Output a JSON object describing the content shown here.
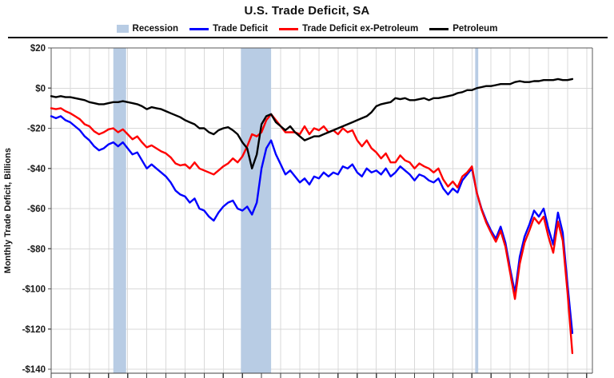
{
  "page": {
    "title": "U.S. Trade Deficit, SA"
  },
  "y_axis_label": "Monthly Trade Deficit, Billions",
  "legend": {
    "items": [
      {
        "label": "Recession",
        "color": "#b8cce4",
        "marker": "band"
      },
      {
        "label": "Trade Deficit",
        "color": "#0000ff",
        "marker": "line"
      },
      {
        "label": "Trade Deficit ex-Petroleum",
        "color": "#ff0000",
        "marker": "line"
      },
      {
        "label": "Petroleum",
        "color": "#000000",
        "marker": "line"
      }
    ]
  },
  "chart_data": {
    "type": "line",
    "title": "U.S. Trade Deficit, SA",
    "xlabel": "",
    "ylabel": "Monthly Trade Deficit, Billions",
    "xlim": [
      1998,
      2026.3
    ],
    "ylim": [
      -140,
      20
    ],
    "grid": true,
    "legend_position": "top",
    "units": "billions of dollars, monthly, seasonally adjusted",
    "y_ticks": [
      {
        "value": 20,
        "label": "$20"
      },
      {
        "value": 0,
        "label": "$0"
      },
      {
        "value": -20,
        "label": "-$20"
      },
      {
        "value": -40,
        "label": "-$40"
      },
      {
        "value": -60,
        "label": "-$60"
      },
      {
        "value": -80,
        "label": "-$80"
      },
      {
        "value": -100,
        "label": "-$100"
      },
      {
        "value": -120,
        "label": "-$120"
      },
      {
        "value": -140,
        "label": "-$140"
      }
    ],
    "recessions": [
      [
        2001.25,
        2001.92
      ],
      [
        2007.92,
        2009.5
      ],
      [
        2020.17,
        2020.33
      ]
    ],
    "colors": {
      "recession": "#b8cce4",
      "grid": "#d9d9d9",
      "frame": "#595959",
      "axis": "#404040"
    },
    "x": [
      1998,
      1998.25,
      1998.5,
      1998.75,
      1999,
      1999.25,
      1999.5,
      1999.75,
      2000,
      2000.25,
      2000.5,
      2000.75,
      2001,
      2001.25,
      2001.5,
      2001.75,
      2002,
      2002.25,
      2002.5,
      2002.75,
      2003,
      2003.25,
      2003.5,
      2003.75,
      2004,
      2004.25,
      2004.5,
      2004.75,
      2005,
      2005.25,
      2005.5,
      2005.75,
      2006,
      2006.25,
      2006.5,
      2006.75,
      2007,
      2007.25,
      2007.5,
      2007.75,
      2008,
      2008.25,
      2008.5,
      2008.75,
      2009,
      2009.25,
      2009.5,
      2009.75,
      2010,
      2010.25,
      2010.5,
      2010.75,
      2011,
      2011.25,
      2011.5,
      2011.75,
      2012,
      2012.25,
      2012.5,
      2012.75,
      2013,
      2013.25,
      2013.5,
      2013.75,
      2014,
      2014.25,
      2014.5,
      2014.75,
      2015,
      2015.25,
      2015.5,
      2015.75,
      2016,
      2016.25,
      2016.5,
      2016.75,
      2017,
      2017.25,
      2017.5,
      2017.75,
      2018,
      2018.25,
      2018.5,
      2018.75,
      2019,
      2019.25,
      2019.5,
      2019.75,
      2020,
      2020.25,
      2020.5,
      2020.75,
      2021,
      2021.25,
      2021.5,
      2021.75,
      2022,
      2022.25,
      2022.5,
      2022.75,
      2023,
      2023.25,
      2023.5,
      2023.75,
      2024,
      2024.25,
      2024.5,
      2024.75,
      2025,
      2025.25
    ],
    "series": [
      {
        "name": "Trade Deficit",
        "color": "#0000ff",
        "values": [
          -14,
          -15,
          -14,
          -16,
          -17,
          -19,
          -21,
          -24,
          -26,
          -29,
          -31,
          -30,
          -28,
          -27,
          -29,
          -27,
          -30,
          -33,
          -32,
          -36,
          -40,
          -38,
          -40,
          -42,
          -44,
          -47,
          -51,
          -53,
          -54,
          -57,
          -55,
          -60,
          -61,
          -64,
          -66,
          -62,
          -59,
          -57,
          -56,
          -60,
          -61,
          -59,
          -63,
          -57,
          -40,
          -30,
          -26,
          -33,
          -38,
          -43,
          -41,
          -44,
          -47,
          -45,
          -48,
          -44,
          -45,
          -42,
          -44,
          -42,
          -43,
          -39,
          -40,
          -38,
          -42,
          -44,
          -40,
          -42,
          -41,
          -43,
          -40,
          -44,
          -42,
          -39,
          -41,
          -43,
          -46,
          -43,
          -44,
          -46,
          -47,
          -45,
          -50,
          -53,
          -50,
          -52,
          -46,
          -43,
          -40,
          -52,
          -60,
          -66,
          -71,
          -75,
          -69,
          -77,
          -90,
          -102,
          -84,
          -74,
          -68,
          -61,
          -64,
          -60,
          -70,
          -78,
          -62,
          -72,
          -98,
          -122
        ]
      },
      {
        "name": "Trade Deficit ex-Petroleum",
        "color": "#ff0000",
        "values": [
          -10,
          -10.5,
          -10,
          -11.5,
          -12.5,
          -14,
          -15.5,
          -18,
          -19,
          -21.5,
          -23,
          -22,
          -20.5,
          -20,
          -22,
          -20.5,
          -23,
          -25.5,
          -24,
          -27,
          -29.5,
          -28.5,
          -30,
          -31.5,
          -32.5,
          -34.5,
          -37.5,
          -38.5,
          -38,
          -40,
          -37,
          -40,
          -41,
          -42,
          -43,
          -41,
          -39,
          -37.5,
          -35,
          -37,
          -34,
          -29,
          -23,
          -24,
          -22,
          -16,
          -13,
          -16,
          -19,
          -22,
          -22,
          -22,
          -23,
          -19,
          -23,
          -20,
          -21,
          -19,
          -22,
          -21,
          -23,
          -20,
          -22,
          -21,
          -26,
          -29,
          -26,
          -30,
          -32,
          -35,
          -32.5,
          -37,
          -37,
          -33.5,
          -36,
          -37,
          -40,
          -37.5,
          -39,
          -40,
          -42,
          -40,
          -45.5,
          -49,
          -46.5,
          -49.5,
          -44,
          -42,
          -39,
          -52,
          -60.5,
          -67,
          -72,
          -76.5,
          -71,
          -79,
          -92,
          -105,
          -87.5,
          -77,
          -71,
          -64.5,
          -67.5,
          -64,
          -74,
          -82,
          -66.5,
          -76,
          -102,
          -132
        ]
      },
      {
        "name": "Petroleum",
        "color": "#000000",
        "values": [
          -4,
          -4.5,
          -4,
          -4.5,
          -4.5,
          -5,
          -5.5,
          -6,
          -7,
          -7.5,
          -8,
          -8,
          -7.5,
          -7,
          -7,
          -6.5,
          -7,
          -7.5,
          -8,
          -9,
          -10.5,
          -9.5,
          -10,
          -10.5,
          -11.5,
          -12.5,
          -13.5,
          -14.5,
          -16,
          -17,
          -18,
          -20,
          -20,
          -22,
          -23,
          -21,
          -20,
          -19.5,
          -21,
          -23,
          -27,
          -30,
          -40,
          -33,
          -18,
          -14,
          -13,
          -17,
          -19,
          -21,
          -19,
          -22,
          -24,
          -26,
          -25,
          -24,
          -24,
          -23,
          -22,
          -21,
          -20,
          -19,
          -18,
          -17,
          -16,
          -15,
          -14,
          -12,
          -9,
          -8,
          -7.5,
          -7,
          -5,
          -5.5,
          -5,
          -6,
          -6,
          -5.5,
          -5,
          -6,
          -5,
          -5,
          -4.5,
          -4,
          -3.5,
          -2.5,
          -2,
          -1,
          -1,
          0,
          0.5,
          1,
          1,
          1.5,
          2,
          2,
          2,
          3,
          3.5,
          3,
          3,
          3.5,
          3.5,
          4,
          4,
          4,
          4.5,
          4,
          4,
          4.5
        ]
      }
    ]
  }
}
